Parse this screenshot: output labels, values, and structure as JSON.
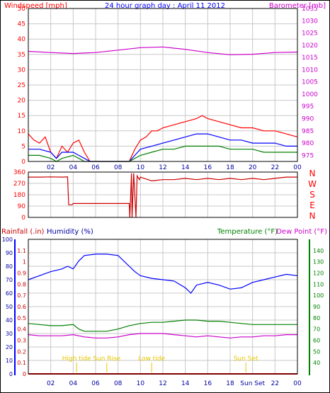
{
  "window": {
    "title": "24 hour graph day : April 11 2012"
  },
  "colors": {
    "background": "#ffffff",
    "grid": "#c8c8c8",
    "red": "#ff0000",
    "blue": "#0000ff",
    "green": "#008000",
    "magenta": "#cc00cc",
    "darkred": "#cc0000",
    "yellow": "#e6c800",
    "navy": "#0000a0",
    "black": "#000000"
  },
  "chart_data": [
    {
      "type": "line",
      "title": "24 hour graph day : April 11 2012",
      "left_axis_label": "Windspeed [mph]",
      "right_axis_label": "Barometer [mb]",
      "x_ticks": [
        "02",
        "04",
        "06",
        "08",
        "10",
        "12",
        "14",
        "16",
        "18",
        "20",
        "22",
        "00"
      ],
      "ylim_left": [
        0,
        50
      ],
      "yticks_left": [
        "0",
        "5",
        "10",
        "15",
        "20",
        "25",
        "30",
        "35",
        "40",
        "45",
        "50"
      ],
      "ylim_right": [
        972.5,
        1035
      ],
      "yticks_right": [
        "975",
        "980",
        "985",
        "990",
        "995",
        "1000",
        "1005",
        "1010",
        "1015",
        "1020",
        "1025",
        "1030",
        "1035"
      ],
      "series": [
        {
          "color": "magenta",
          "axis": "right",
          "x": [
            0,
            2,
            4,
            6,
            8,
            10,
            12,
            14,
            16,
            18,
            20,
            22,
            24
          ],
          "y": [
            1017.5,
            1017,
            1016.6,
            1017,
            1018,
            1019,
            1019.3,
            1018.3,
            1017,
            1016.1,
            1016.3,
            1017,
            1017.2
          ]
        },
        {
          "color": "red",
          "axis": "left",
          "x": [
            0,
            0.5,
            1,
            1.5,
            2,
            2.5,
            3,
            3.5,
            4,
            4.5,
            5,
            5.5,
            6,
            7,
            8,
            9,
            9.5,
            10,
            10.5,
            11,
            11.5,
            12,
            13,
            14,
            15,
            15.5,
            16,
            17,
            18,
            19,
            20,
            21,
            22,
            23,
            24
          ],
          "y": [
            9,
            7,
            6,
            8,
            3,
            1,
            5,
            3,
            6,
            7,
            3,
            0,
            0,
            0,
            0,
            0,
            4,
            7,
            8,
            10,
            10,
            11,
            12,
            13,
            14,
            15,
            14,
            13,
            12,
            11,
            11,
            10,
            10,
            9,
            8
          ]
        },
        {
          "color": "blue",
          "axis": "left",
          "x": [
            0,
            1,
            2,
            2.5,
            3,
            4,
            4.5,
            5,
            5.5,
            6,
            8,
            9,
            9.5,
            10,
            11,
            12,
            13,
            14,
            15,
            16,
            17,
            18,
            19,
            20,
            21,
            22,
            23,
            24
          ],
          "y": [
            4,
            4,
            3,
            1,
            3,
            3,
            2,
            1,
            0,
            0,
            0,
            0,
            2,
            4,
            5,
            6,
            7,
            8,
            9,
            9,
            8,
            7,
            7,
            6,
            6,
            6,
            5,
            5
          ]
        },
        {
          "color": "green",
          "axis": "left",
          "x": [
            0,
            1,
            2,
            2.5,
            3,
            4,
            4.5,
            5,
            5.5,
            6,
            8,
            9,
            9.5,
            10,
            11,
            12,
            13,
            14,
            15,
            16,
            17,
            18,
            19,
            20,
            21,
            22,
            23,
            24
          ],
          "y": [
            2,
            2,
            1,
            0,
            1,
            2,
            1,
            0,
            0,
            0,
            0,
            0,
            1,
            2,
            3,
            4,
            4,
            5,
            5,
            5,
            5,
            4,
            4,
            4,
            3,
            3,
            3,
            3
          ]
        }
      ]
    },
    {
      "type": "line",
      "right_axis_label_letters": [
        "N",
        "W",
        "S",
        "E",
        "N"
      ],
      "ylim": [
        0,
        360
      ],
      "yticks": [
        "0",
        "90",
        "180",
        "270",
        "360"
      ],
      "x_ticks": [],
      "series": [
        {
          "color": "darkred",
          "x": [
            0,
            1,
            2,
            3,
            3.5,
            3.6,
            3.9,
            4.0,
            6,
            8,
            9.0,
            9.05,
            9.2,
            9.25,
            9.4,
            9.6,
            9.7,
            9.9,
            10,
            11,
            12,
            13,
            14,
            15,
            16,
            17,
            18,
            19,
            20,
            21,
            22,
            23,
            24
          ],
          "y": [
            320,
            320,
            322,
            320,
            322,
            100,
            100,
            110,
            110,
            110,
            110,
            0,
            350,
            0,
            350,
            0,
            330,
            300,
            320,
            290,
            300,
            300,
            310,
            300,
            310,
            300,
            310,
            300,
            310,
            300,
            310,
            320,
            320
          ]
        }
      ]
    },
    {
      "type": "line",
      "left_axis_label_rainfall": "Rainfall (.in)",
      "left_axis_label_humidity": "Humidity (%)",
      "right_axis_label_temperature": "Temperature (°F)",
      "right_axis_label_dewpoint": "Dew Point (°F)",
      "x_ticks": [
        "02",
        "04",
        "06",
        "08",
        "10",
        "12",
        "14",
        "16",
        "18",
        "Sun Set",
        "22",
        "00"
      ],
      "ylim_rain": [
        0,
        1.2
      ],
      "yticks_rain": [
        "0",
        "0.1",
        "0.2",
        "0.3",
        "0.4",
        "0.5",
        "0.6",
        "0.7",
        "0.8",
        "0.9",
        "1",
        "1.1"
      ],
      "ylim_humidity": [
        0,
        100
      ],
      "yticks_humidity": [
        "0",
        "10",
        "20",
        "30",
        "40",
        "50",
        "60",
        "70",
        "80",
        "90",
        "100"
      ],
      "ylim_temp": [
        30,
        150
      ],
      "yticks_temp": [
        "40",
        "50",
        "60",
        "70",
        "80",
        "90",
        "100",
        "110",
        "120",
        "130",
        "140"
      ],
      "annotations": [
        {
          "label": "High tide",
          "hour": 4.3
        },
        {
          "label": "Sun Rise",
          "hour": 7.0
        },
        {
          "label": "Low tide",
          "hour": 11.0
        },
        {
          "label": "Sun Set",
          "hour": 19.4
        }
      ],
      "series": [
        {
          "name": "Humidity",
          "color": "blue",
          "x": [
            0,
            1,
            2,
            3,
            3.5,
            4,
            4.5,
            5,
            6,
            7,
            8,
            9,
            9.5,
            10,
            11,
            12,
            13,
            14,
            14.5,
            15,
            16,
            17,
            18,
            19,
            20,
            21,
            22,
            23,
            24
          ],
          "y": [
            70,
            73,
            76,
            78,
            80,
            78,
            84,
            88,
            89,
            89,
            88,
            80,
            76,
            73,
            71,
            70,
            69,
            64,
            60,
            66,
            68,
            66,
            63,
            64,
            68,
            70,
            72,
            74,
            73
          ]
        },
        {
          "name": "Temperature",
          "color": "green",
          "x": [
            0,
            1,
            2,
            3,
            4,
            4.5,
            5,
            6,
            7,
            8,
            9,
            10,
            11,
            12,
            13,
            14,
            15,
            16,
            17,
            18,
            19,
            20,
            21,
            22,
            23,
            24
          ],
          "y": [
            75,
            74,
            73,
            73,
            74,
            70,
            68,
            68,
            68,
            70,
            73,
            75,
            76,
            76,
            77,
            78,
            78,
            77,
            77,
            76,
            75,
            74,
            74,
            74,
            74,
            74
          ]
        },
        {
          "name": "Dew Point",
          "color": "magenta",
          "x": [
            0,
            1,
            2,
            3,
            4,
            5,
            6,
            7,
            8,
            9,
            10,
            11,
            12,
            13,
            14,
            15,
            16,
            17,
            18,
            19,
            20,
            21,
            22,
            23,
            24
          ],
          "y": [
            65,
            64,
            64,
            64,
            65,
            63,
            62,
            62,
            63,
            65,
            66,
            66,
            66,
            65,
            64,
            63,
            64,
            63,
            62,
            63,
            63,
            64,
            64,
            65,
            65
          ]
        },
        {
          "name": "Rainfall",
          "color": "red",
          "x": [
            0,
            24
          ],
          "y": [
            0,
            0
          ]
        }
      ]
    }
  ]
}
